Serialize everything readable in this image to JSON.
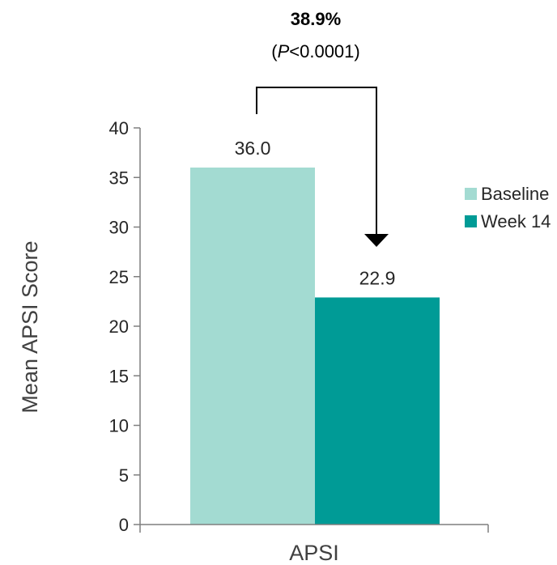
{
  "chart_data": {
    "type": "bar",
    "categories": [
      "APSI"
    ],
    "series": [
      {
        "name": "Baseline",
        "values": [
          36.0
        ],
        "color": "#a3dbd2"
      },
      {
        "name": "Week 14",
        "values": [
          22.9
        ],
        "color": "#009b96"
      }
    ],
    "data_labels": [
      "36.0",
      "22.9"
    ],
    "xlabel": "APSI",
    "ylabel": "Mean APSI Score",
    "ylim": [
      0,
      40
    ],
    "yticks": [
      0,
      5,
      10,
      15,
      20,
      25,
      30,
      35,
      40
    ],
    "grid": false,
    "legend": "right",
    "annotation": {
      "percent": "38.9%",
      "p_open": "(",
      "p_italic": "P",
      "p_rest": "<0.0001)"
    }
  }
}
